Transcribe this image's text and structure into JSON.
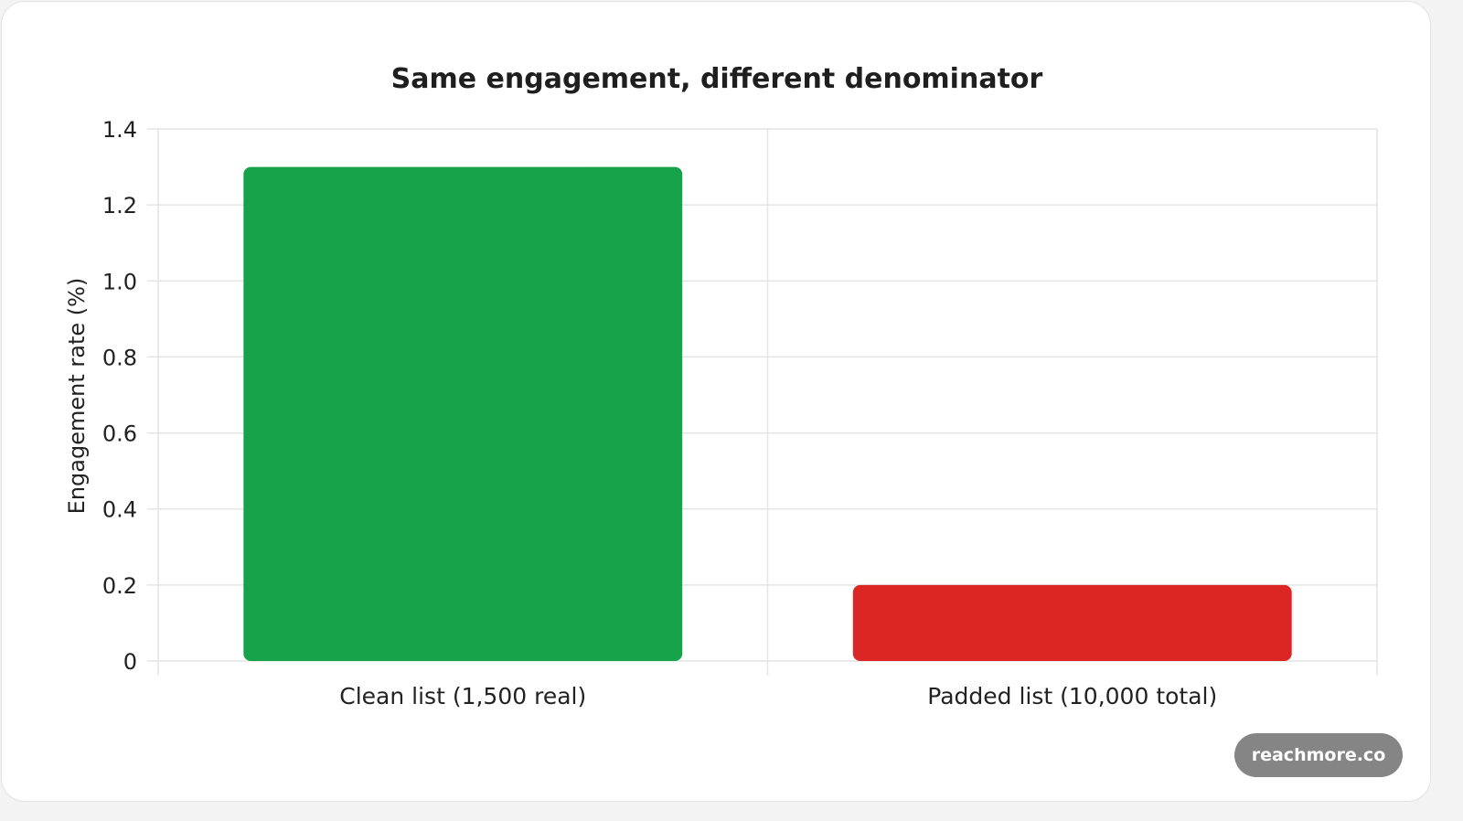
{
  "chart_data": {
    "type": "bar",
    "title": "Same engagement, different denominator",
    "xlabel": "",
    "ylabel": "Engagement rate (%)",
    "categories": [
      "Clean list (1,500 real)",
      "Padded list (10,000 total)"
    ],
    "values": [
      1.3,
      0.2
    ],
    "colors": [
      "#16a34a",
      "#dc2626"
    ],
    "ylim": [
      0,
      1.4
    ],
    "yticks": [
      "0",
      "0.2",
      "0.4",
      "0.6",
      "0.8",
      "1.0",
      "1.2",
      "1.4"
    ],
    "grid": true,
    "legend": "none"
  },
  "watermark": {
    "text": "reachmore.co",
    "background": "#858585"
  }
}
